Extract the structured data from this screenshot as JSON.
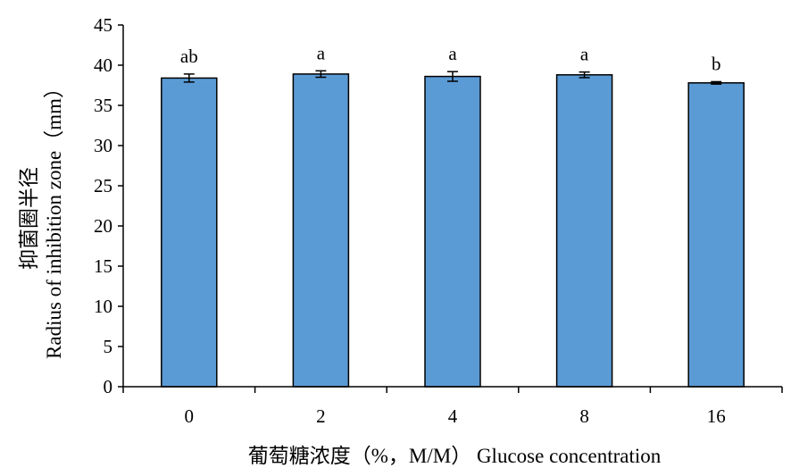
{
  "chart_data": {
    "type": "bar",
    "title": "",
    "xlabel": "葡萄糖浓度（%，M/M） Glucose concentration",
    "ylabel_cn": "抑菌圈半径",
    "ylabel_en": "Radius of inhibition zone（mm）",
    "categories": [
      "0",
      "2",
      "4",
      "8",
      "16"
    ],
    "values": [
      38.4,
      38.9,
      38.6,
      38.8,
      37.8
    ],
    "errors": [
      0.5,
      0.4,
      0.6,
      0.35,
      0.15
    ],
    "significance": [
      "ab",
      "a",
      "a",
      "a",
      "b"
    ],
    "ylim": [
      0,
      45
    ],
    "yticks": [
      0,
      5,
      10,
      15,
      20,
      25,
      30,
      35,
      40,
      45
    ],
    "grid": false,
    "legend": "none",
    "bar_color": "#5b9bd5",
    "bar_edge_color": "#000000"
  }
}
